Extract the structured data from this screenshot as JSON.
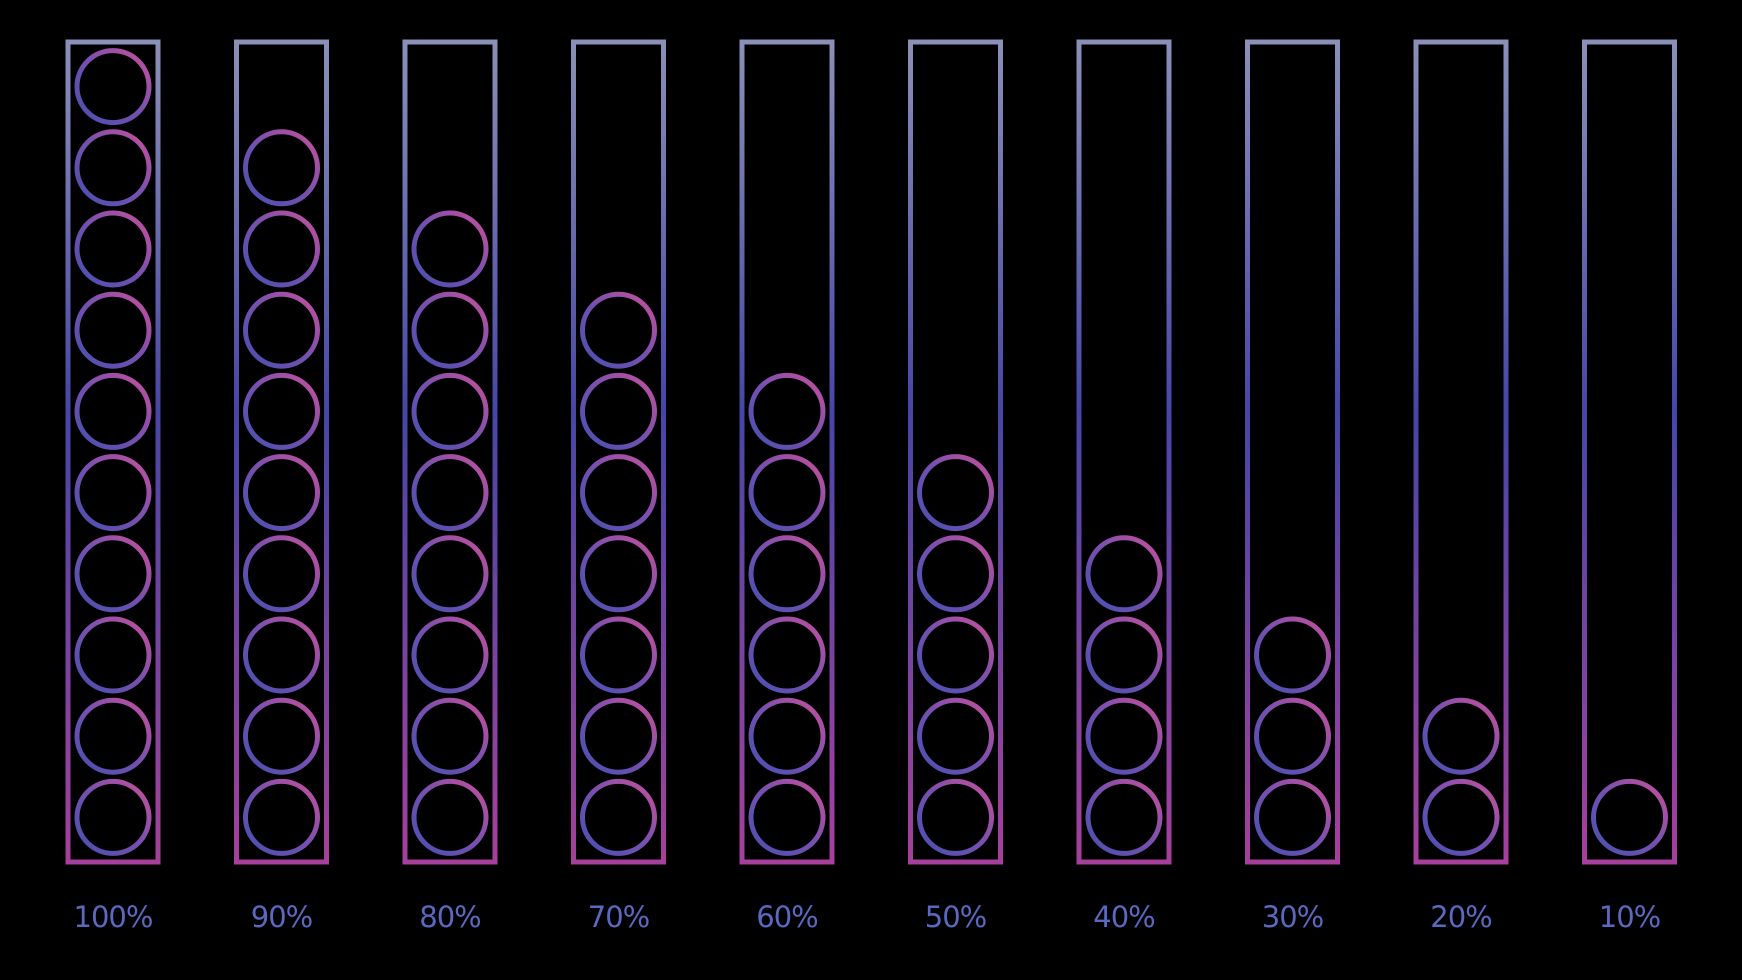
{
  "chart_data": {
    "type": "pictograph",
    "categories": [
      null,
      null,
      null,
      null,
      null,
      null,
      null,
      null,
      null,
      null
    ],
    "values": [
      100,
      90,
      80,
      70,
      60,
      50,
      40,
      30,
      20,
      10
    ],
    "value_labels": [
      "100%",
      "90%",
      "80%",
      "70%",
      "60%",
      "50%",
      "40%",
      "30%",
      "20%",
      "10%"
    ],
    "ylim": [
      0,
      100
    ]
  }
}
